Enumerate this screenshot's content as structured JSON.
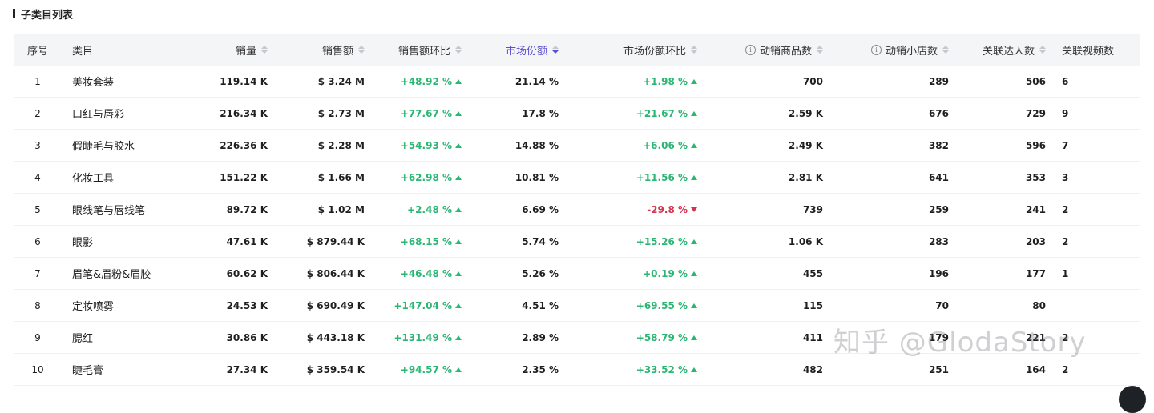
{
  "section_title": "子类目列表",
  "watermark": "知乎 @GlodaStory",
  "headers": [
    {
      "key": "idx",
      "label": "序号",
      "sortable": false
    },
    {
      "key": "category",
      "label": "类目",
      "sortable": false
    },
    {
      "key": "sales_volume",
      "label": "销量",
      "sortable": true
    },
    {
      "key": "sales_amount",
      "label": "销售额",
      "sortable": true
    },
    {
      "key": "sales_amount_ratio",
      "label": "销售额环比",
      "sortable": true
    },
    {
      "key": "market_share",
      "label": "市场份额",
      "sortable": true,
      "active": true,
      "sort_dir": "desc"
    },
    {
      "key": "market_share_ratio",
      "label": "市场份额环比",
      "sortable": true
    },
    {
      "key": "active_products",
      "label": "动销商品数",
      "sortable": true,
      "info": true
    },
    {
      "key": "active_shops",
      "label": "动销小店数",
      "sortable": true,
      "info": true
    },
    {
      "key": "influencers",
      "label": "关联达人数",
      "sortable": true
    },
    {
      "key": "videos",
      "label": "关联视频数",
      "sortable": false
    }
  ],
  "rows": [
    {
      "idx": "1",
      "category": "美妆套装",
      "sales_volume": "119.14 K",
      "sales_amount": "$ 3.24 M",
      "sales_amount_ratio": "+48.92 %",
      "sales_amount_dir": "up",
      "market_share": "21.14 %",
      "market_share_ratio": "+1.98 %",
      "market_share_dir": "up",
      "active_products": "700",
      "active_shops": "289",
      "influencers": "506",
      "videos": "6"
    },
    {
      "idx": "2",
      "category": "口红与唇彩",
      "sales_volume": "216.34 K",
      "sales_amount": "$ 2.73 M",
      "sales_amount_ratio": "+77.67 %",
      "sales_amount_dir": "up",
      "market_share": "17.8 %",
      "market_share_ratio": "+21.67 %",
      "market_share_dir": "up",
      "active_products": "2.59 K",
      "active_shops": "676",
      "influencers": "729",
      "videos": "9"
    },
    {
      "idx": "3",
      "category": "假睫毛与胶水",
      "sales_volume": "226.36 K",
      "sales_amount": "$ 2.28 M",
      "sales_amount_ratio": "+54.93 %",
      "sales_amount_dir": "up",
      "market_share": "14.88 %",
      "market_share_ratio": "+6.06 %",
      "market_share_dir": "up",
      "active_products": "2.49 K",
      "active_shops": "382",
      "influencers": "596",
      "videos": "7"
    },
    {
      "idx": "4",
      "category": "化妆工具",
      "sales_volume": "151.22 K",
      "sales_amount": "$ 1.66 M",
      "sales_amount_ratio": "+62.98 %",
      "sales_amount_dir": "up",
      "market_share": "10.81 %",
      "market_share_ratio": "+11.56 %",
      "market_share_dir": "up",
      "active_products": "2.81 K",
      "active_shops": "641",
      "influencers": "353",
      "videos": "3"
    },
    {
      "idx": "5",
      "category": "眼线笔与唇线笔",
      "sales_volume": "89.72 K",
      "sales_amount": "$ 1.02 M",
      "sales_amount_ratio": "+2.48 %",
      "sales_amount_dir": "up",
      "market_share": "6.69 %",
      "market_share_ratio": "-29.8 %",
      "market_share_dir": "down",
      "active_products": "739",
      "active_shops": "259",
      "influencers": "241",
      "videos": "2"
    },
    {
      "idx": "6",
      "category": "眼影",
      "sales_volume": "47.61 K",
      "sales_amount": "$ 879.44 K",
      "sales_amount_ratio": "+68.15 %",
      "sales_amount_dir": "up",
      "market_share": "5.74 %",
      "market_share_ratio": "+15.26 %",
      "market_share_dir": "up",
      "active_products": "1.06 K",
      "active_shops": "283",
      "influencers": "203",
      "videos": "2"
    },
    {
      "idx": "7",
      "category": "眉笔&眉粉&眉胶",
      "sales_volume": "60.62 K",
      "sales_amount": "$ 806.44 K",
      "sales_amount_ratio": "+46.48 %",
      "sales_amount_dir": "up",
      "market_share": "5.26 %",
      "market_share_ratio": "+0.19 %",
      "market_share_dir": "up",
      "active_products": "455",
      "active_shops": "196",
      "influencers": "177",
      "videos": "1"
    },
    {
      "idx": "8",
      "category": "定妆喷雾",
      "sales_volume": "24.53 K",
      "sales_amount": "$ 690.49 K",
      "sales_amount_ratio": "+147.04 %",
      "sales_amount_dir": "up",
      "market_share": "4.51 %",
      "market_share_ratio": "+69.55 %",
      "market_share_dir": "up",
      "active_products": "115",
      "active_shops": "70",
      "influencers": "80",
      "videos": ""
    },
    {
      "idx": "9",
      "category": "腮红",
      "sales_volume": "30.86 K",
      "sales_amount": "$ 443.18 K",
      "sales_amount_ratio": "+131.49 %",
      "sales_amount_dir": "up",
      "market_share": "2.89 %",
      "market_share_ratio": "+58.79 %",
      "market_share_dir": "up",
      "active_products": "411",
      "active_shops": "179",
      "influencers": "221",
      "videos": "2"
    },
    {
      "idx": "10",
      "category": "睫毛膏",
      "sales_volume": "27.34 K",
      "sales_amount": "$ 359.54 K",
      "sales_amount_ratio": "+94.57 %",
      "sales_amount_dir": "up",
      "market_share": "2.35 %",
      "market_share_ratio": "+33.52 %",
      "market_share_dir": "up",
      "active_products": "482",
      "active_shops": "251",
      "influencers": "164",
      "videos": "2"
    }
  ],
  "colors": {
    "up": "#2bb673",
    "down": "#d6334f",
    "active_sort": "#5b4fd1",
    "header_bg": "#f4f5f7"
  }
}
